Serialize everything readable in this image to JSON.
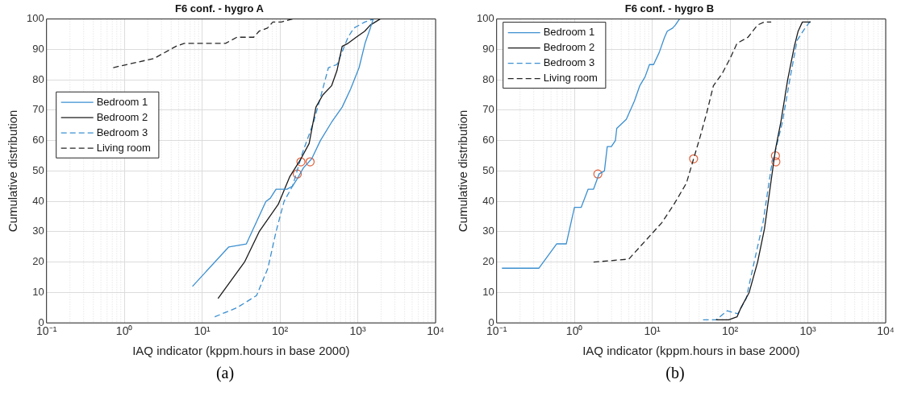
{
  "chart_data": [
    {
      "type": "line",
      "title": "F6 conf. - hygro A",
      "xlabel": "IAQ indicator (kppm.hours in base 2000)",
      "ylabel": "Cumulative distribution",
      "log": "x",
      "grid": true,
      "legend": "left",
      "xlim": [
        0.1,
        10000
      ],
      "xticks": [
        {
          "value": 0.1,
          "label": "10⁻¹"
        },
        {
          "value": 1,
          "label": "10⁰"
        },
        {
          "value": 10,
          "label": "10¹"
        },
        {
          "value": 100,
          "label": "10²"
        },
        {
          "value": 1000,
          "label": "10³"
        },
        {
          "value": 10000,
          "label": "10⁴"
        }
      ],
      "ylim": [
        0,
        100
      ],
      "yticks": [
        0,
        10,
        20,
        30,
        40,
        50,
        60,
        70,
        80,
        90,
        100
      ],
      "annotations": [
        "(a)"
      ],
      "series": [
        {
          "name": "Bedroom 1",
          "color": "#3b8fd0",
          "line_style": "solid",
          "x": [
            7.5,
            22,
            37,
            66,
            75,
            89,
            123,
            145,
            163,
            200,
            256,
            331,
            460,
            630,
            810,
            1040,
            1240,
            1450,
            1580
          ],
          "values": [
            12,
            25,
            26,
            40,
            41,
            44,
            44,
            45,
            47,
            51,
            54,
            60,
            66,
            71,
            77,
            84,
            92,
            97,
            100
          ]
        },
        {
          "name": "Bedroom 2",
          "color": "#1a1a1a",
          "line_style": "solid",
          "x": [
            16,
            35,
            54,
            95,
            133,
            186,
            237,
            290,
            355,
            460,
            540,
            630,
            750,
            955,
            1230,
            1450,
            1940
          ],
          "values": [
            8,
            20,
            30,
            39,
            48,
            54,
            59,
            71,
            75,
            78,
            83,
            91,
            92,
            94,
            96,
            98,
            100
          ]
        },
        {
          "name": "Bedroom 3",
          "color": "#3b8fd0",
          "line_style": "dashed",
          "x": [
            14.5,
            28,
            50,
            70,
            89,
            113,
            145,
            195,
            270,
            330,
            420,
            540,
            750,
            890,
            1230,
            1590
          ],
          "values": [
            2,
            5,
            9,
            18,
            30,
            40,
            45,
            56,
            66,
            74,
            84,
            85,
            94,
            97,
            99,
            100
          ]
        },
        {
          "name": "Living room",
          "color": "#262626",
          "line_style": "dashed",
          "x": [
            0.72,
            2.4,
            4.6,
            5.9,
            20,
            28,
            46,
            54,
            69,
            81,
            104,
            145
          ],
          "values": [
            84,
            87,
            91,
            92,
            92,
            94,
            94,
            96,
            97,
            99,
            99,
            100
          ]
        },
        {
          "type": "scatter",
          "marker": "circle",
          "color": "#e0603a",
          "x": [
            186,
            244,
            167
          ],
          "values": [
            53,
            53,
            49
          ]
        }
      ]
    },
    {
      "type": "line",
      "title": "F6 conf. - hygro B",
      "xlabel": "IAQ indicator (kppm.hours in base 2000)",
      "ylabel": "Cumulative distribution",
      "log": "x",
      "grid": true,
      "legend": "top left",
      "xlim": [
        0.1,
        10000
      ],
      "xticks": [
        {
          "value": 0.1,
          "label": "10⁻¹"
        },
        {
          "value": 1,
          "label": "10⁰"
        },
        {
          "value": 10,
          "label": "10¹"
        },
        {
          "value": 100,
          "label": "10²"
        },
        {
          "value": 1000,
          "label": "10³"
        },
        {
          "value": 10000,
          "label": "10⁴"
        }
      ],
      "ylim": [
        0,
        100
      ],
      "yticks": [
        0,
        10,
        20,
        30,
        40,
        50,
        60,
        70,
        80,
        90,
        100
      ],
      "annotations": [
        "(b)"
      ],
      "series": [
        {
          "name": "Bedroom 1",
          "color": "#3b8fd0",
          "line_style": "solid",
          "x": [
            0.117,
            0.35,
            0.59,
            0.785,
            1.0,
            1.22,
            1.5,
            1.76,
            2.07,
            2.43,
            2.64,
            2.98,
            3.36,
            3.5,
            4.64,
            5.9,
            6.9,
            8.1,
            9.2,
            10.4,
            12.3,
            14.4,
            15.6,
            18.3,
            19.8,
            22.4
          ],
          "values": [
            18,
            18,
            26,
            26,
            38,
            38,
            44,
            44,
            49,
            50,
            58,
            58,
            60,
            64,
            67,
            73,
            78,
            81,
            85,
            85,
            89,
            94,
            96,
            97,
            98,
            100
          ]
        },
        {
          "name": "Bedroom 2",
          "color": "#1a1a1a",
          "line_style": "solid",
          "x": [
            66,
            85,
            96,
            123,
            138,
            176,
            226,
            277,
            338,
            383,
            449,
            550,
            670,
            750,
            850,
            1085
          ],
          "values": [
            1,
            1,
            1,
            2,
            5,
            10,
            20,
            31,
            47,
            57,
            66,
            80,
            91,
            96,
            99,
            99
          ]
        },
        {
          "name": "Bedroom 3",
          "color": "#3b8fd0",
          "line_style": "dashed",
          "x": [
            45,
            66,
            92,
            126,
            161,
            208,
            265,
            338,
            470,
            595,
            728,
            920,
            1130
          ],
          "values": [
            1,
            1,
            4,
            3,
            8,
            21,
            33,
            51,
            66,
            81,
            93,
            97,
            100
          ]
        },
        {
          "name": "Living room",
          "color": "#262626",
          "line_style": "dashed",
          "x": [
            1.76,
            5.0,
            8.85,
            13.3,
            19,
            27.5,
            34,
            41,
            50,
            61,
            79,
            100,
            123,
            170,
            225,
            275,
            338
          ],
          "values": [
            20,
            21,
            28,
            33,
            39,
            46,
            54,
            61,
            69,
            78,
            82,
            87,
            92,
            94,
            98,
            99,
            99
          ]
        },
        {
          "type": "scatter",
          "marker": "circle",
          "color": "#e0603a",
          "x": [
            2.0,
            34,
            383,
            388
          ],
          "values": [
            49,
            54,
            55,
            53
          ]
        }
      ]
    }
  ]
}
